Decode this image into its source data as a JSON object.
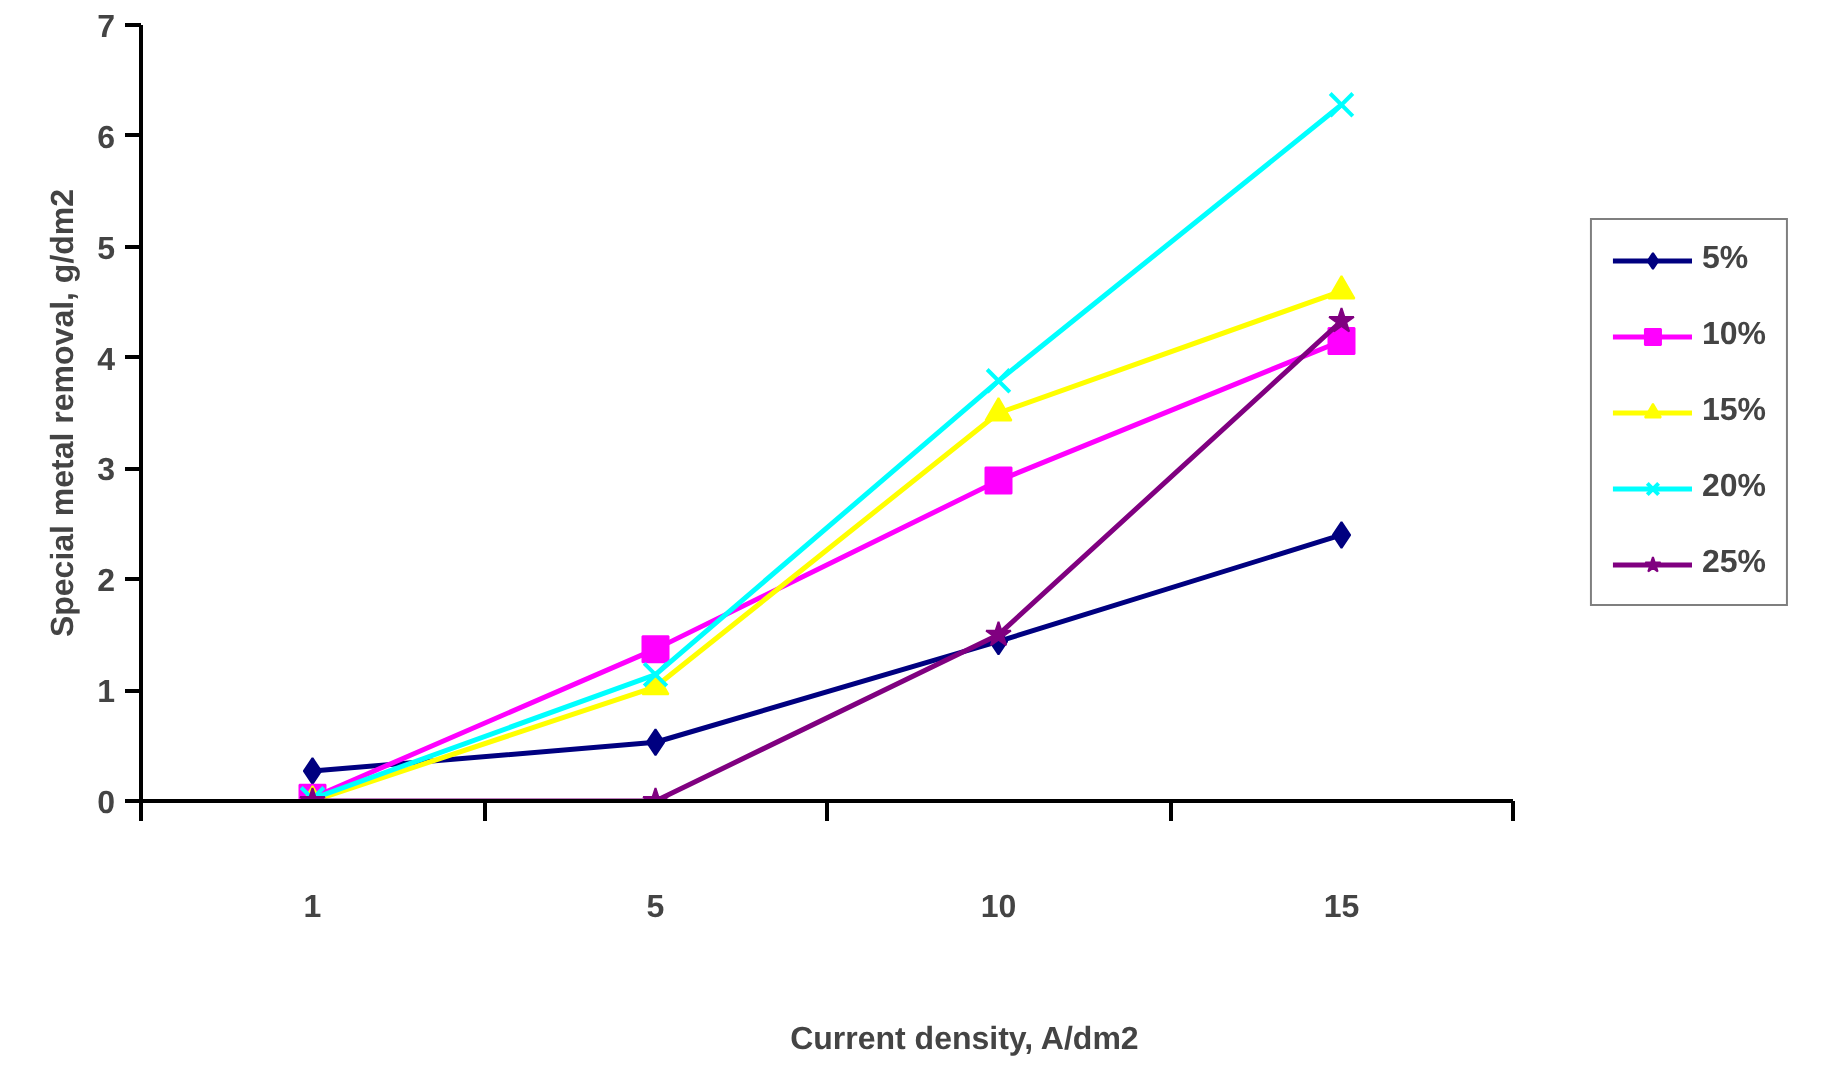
{
  "chart_data": {
    "type": "line",
    "xlabel": "Current density, A/dm2",
    "ylabel": "Special metal removal, g/dm2",
    "categories": [
      "1",
      "5",
      "10",
      "15"
    ],
    "ylim": [
      0,
      7
    ],
    "yticks": [
      0,
      1,
      2,
      3,
      4,
      5,
      6,
      7
    ],
    "grid": false,
    "legend": "right",
    "series": [
      {
        "name": "5%",
        "color": "#000080",
        "marker": "diamond",
        "values": [
          0.27,
          0.53,
          1.44,
          2.4
        ]
      },
      {
        "name": "10%",
        "color": "#ff00ff",
        "marker": "square",
        "values": [
          0.03,
          1.37,
          2.89,
          4.15
        ]
      },
      {
        "name": "15%",
        "color": "#ffff00",
        "marker": "triangle",
        "values": [
          0,
          1.03,
          3.5,
          4.6
        ]
      },
      {
        "name": "20%",
        "color": "#00ffff",
        "marker": "cross",
        "values": [
          0.02,
          1.14,
          3.79,
          6.28
        ]
      },
      {
        "name": "25%",
        "color": "#800080",
        "marker": "star",
        "values": [
          0,
          0,
          1.5,
          4.33
        ]
      }
    ]
  }
}
